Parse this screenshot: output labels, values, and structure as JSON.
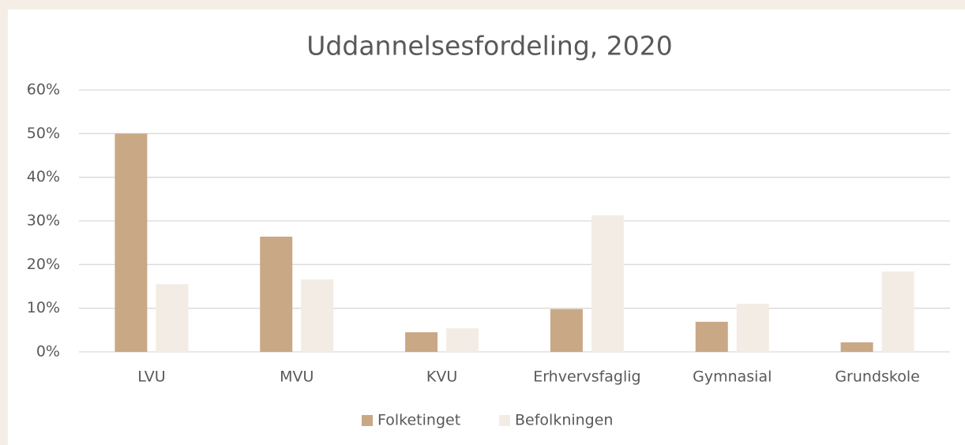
{
  "chart_data": {
    "type": "bar",
    "title": "Uddannelsesfordeling, 2020",
    "categories": [
      "LVU",
      "MVU",
      "KVU",
      "Erhvervsfaglig",
      "Gymnasial",
      "Grundskole"
    ],
    "series": [
      {
        "name": "Folketinget",
        "color": "#c9a886",
        "values": [
          50,
          26.4,
          4.5,
          9.8,
          6.9,
          2.2
        ]
      },
      {
        "name": "Befolkningen",
        "color": "#f3ece4",
        "values": [
          15.5,
          16.6,
          5.4,
          31.3,
          11.0,
          18.4
        ]
      }
    ],
    "ylim": [
      0,
      60
    ],
    "yticks": [
      {
        "value": 0,
        "label": "0%"
      },
      {
        "value": 10,
        "label": "10%"
      },
      {
        "value": 20,
        "label": "20%"
      },
      {
        "value": 30,
        "label": "30%"
      },
      {
        "value": 40,
        "label": "40%"
      },
      {
        "value": 50,
        "label": "50%"
      },
      {
        "value": 60,
        "label": "60%"
      }
    ],
    "grid": true,
    "legend": "bottom"
  }
}
